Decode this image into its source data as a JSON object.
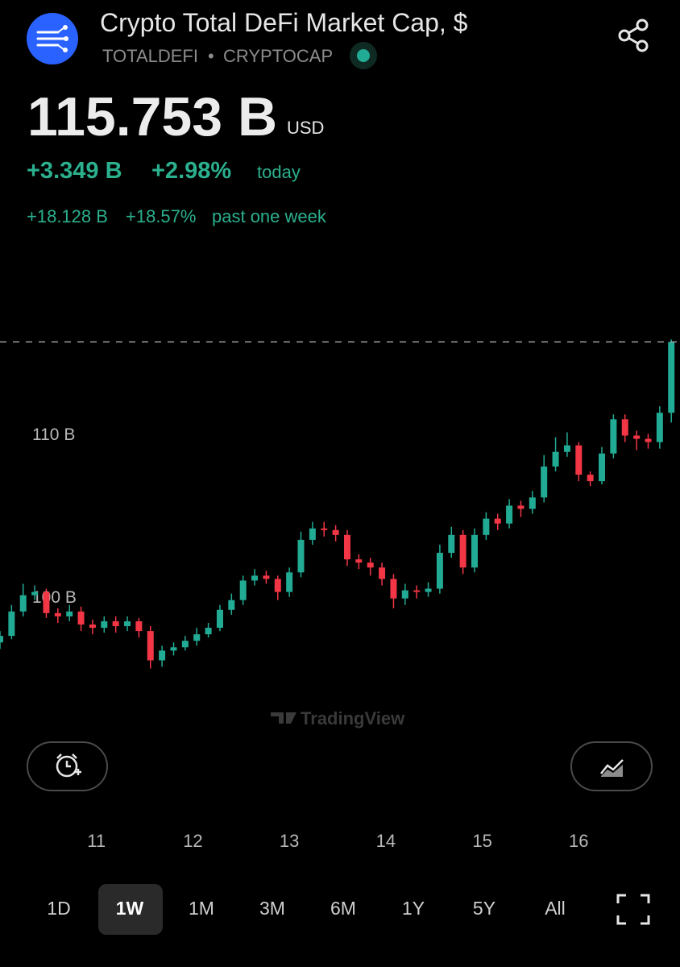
{
  "header": {
    "title": "Crypto Total DeFi Market Cap, $",
    "symbol": "TOTALDEFI",
    "separator": "•",
    "exchange": "CRYPTOCAP",
    "price": "115.753 B",
    "currency": "USD",
    "change_today": "+3.349 B",
    "change_today_pct": "+2.98%",
    "today_label": "today",
    "change_week": "+18.128 B",
    "change_week_pct": "+18.57%",
    "week_label": "past one week"
  },
  "watermark": "TradingView",
  "timeframes": [
    "1D",
    "1W",
    "1M",
    "3M",
    "6M",
    "1Y",
    "5Y",
    "All"
  ],
  "selected_timeframe": "1W",
  "chart_data": {
    "type": "candlestick",
    "x": [
      10,
      10.12,
      10.24,
      10.36,
      10.48,
      10.6,
      10.72,
      10.84,
      10.96,
      11.08,
      11.2,
      11.32,
      11.44,
      11.56,
      11.68,
      11.8,
      11.92,
      12.04,
      12.16,
      12.28,
      12.4,
      12.52,
      12.64,
      12.76,
      12.88,
      13,
      13.12,
      13.24,
      13.36,
      13.48,
      13.6,
      13.72,
      13.84,
      13.96,
      14.08,
      14.2,
      14.32,
      14.44,
      14.56,
      14.68,
      14.8,
      14.92,
      15.04,
      15.16,
      15.28,
      15.4,
      15.52,
      15.64,
      15.76,
      15.88,
      16,
      16.12,
      16.24,
      16.36,
      16.48,
      16.6,
      16.72,
      16.84,
      16.96
    ],
    "open": [
      97.3,
      97.7,
      99.2,
      100.2,
      100.4,
      99.1,
      98.9,
      99.2,
      98.4,
      98.2,
      98.6,
      98.3,
      98.6,
      98.0,
      96.2,
      96.8,
      97.0,
      97.4,
      97.8,
      98.2,
      99.3,
      99.9,
      101.1,
      101.4,
      101.2,
      100.4,
      101.6,
      103.6,
      104.3,
      104.2,
      103.9,
      102.4,
      102.2,
      101.9,
      101.2,
      100.0,
      100.5,
      100.4,
      100.6,
      102.8,
      103.9,
      101.9,
      103.9,
      104.9,
      104.6,
      105.7,
      105.5,
      106.2,
      108.1,
      109.0,
      109.4,
      107.6,
      107.2,
      108.9,
      111.0,
      110.0,
      109.8,
      109.6,
      111.4
    ],
    "high": [
      98.0,
      99.6,
      100.9,
      100.8,
      100.6,
      99.4,
      99.6,
      99.5,
      98.7,
      98.9,
      98.9,
      98.9,
      98.8,
      98.3,
      97.1,
      97.3,
      97.7,
      98.2,
      98.5,
      99.6,
      100.3,
      101.4,
      101.8,
      101.7,
      101.4,
      101.9,
      104.1,
      104.7,
      104.7,
      104.5,
      104.2,
      102.7,
      102.5,
      102.2,
      101.5,
      100.9,
      100.8,
      101.0,
      103.3,
      104.4,
      104.2,
      104.3,
      105.3,
      105.2,
      106.1,
      106.0,
      106.6,
      108.8,
      109.9,
      110.2,
      109.6,
      107.8,
      109.3,
      111.3,
      111.3,
      110.3,
      110.1,
      111.8,
      115.9
    ],
    "low": [
      96.9,
      97.5,
      98.9,
      99.9,
      98.8,
      98.5,
      98.6,
      98.0,
      97.8,
      97.9,
      97.9,
      98.0,
      97.6,
      95.7,
      95.8,
      96.5,
      96.8,
      97.1,
      97.6,
      98.0,
      99.0,
      99.6,
      100.8,
      100.9,
      99.9,
      100.1,
      101.3,
      103.3,
      103.8,
      103.5,
      102.0,
      101.8,
      101.4,
      100.8,
      99.4,
      99.6,
      100.0,
      100.1,
      100.3,
      102.5,
      101.5,
      101.6,
      103.6,
      104.2,
      104.3,
      105.0,
      105.2,
      105.9,
      107.8,
      108.7,
      107.2,
      106.9,
      107.0,
      108.6,
      109.6,
      109.1,
      109.2,
      109.2,
      110.8
    ],
    "close": [
      97.7,
      99.2,
      100.2,
      100.4,
      99.1,
      98.9,
      99.2,
      98.4,
      98.2,
      98.6,
      98.3,
      98.6,
      98.0,
      96.2,
      96.8,
      97.0,
      97.4,
      97.8,
      98.2,
      99.3,
      99.9,
      101.1,
      101.4,
      101.2,
      100.4,
      101.6,
      103.6,
      104.3,
      104.2,
      103.9,
      102.4,
      102.2,
      101.9,
      101.2,
      100.0,
      100.5,
      100.4,
      100.6,
      102.8,
      103.9,
      101.9,
      103.9,
      104.9,
      104.6,
      105.7,
      105.5,
      106.2,
      108.1,
      109.0,
      109.4,
      107.6,
      107.2,
      108.9,
      111.0,
      110.0,
      109.8,
      109.6,
      111.4,
      115.753
    ],
    "up_color": "#22ab94",
    "down_color": "#f23645",
    "xlim": [
      10,
      17.05
    ],
    "xticks": [
      11,
      12,
      13,
      14,
      15,
      16
    ],
    "ylim": [
      93.7,
      121.9
    ],
    "yticks": [
      {
        "value": 100,
        "label": "100 B"
      },
      {
        "value": 110,
        "label": "110 B"
      }
    ],
    "grid": false,
    "last_price_line": true
  }
}
